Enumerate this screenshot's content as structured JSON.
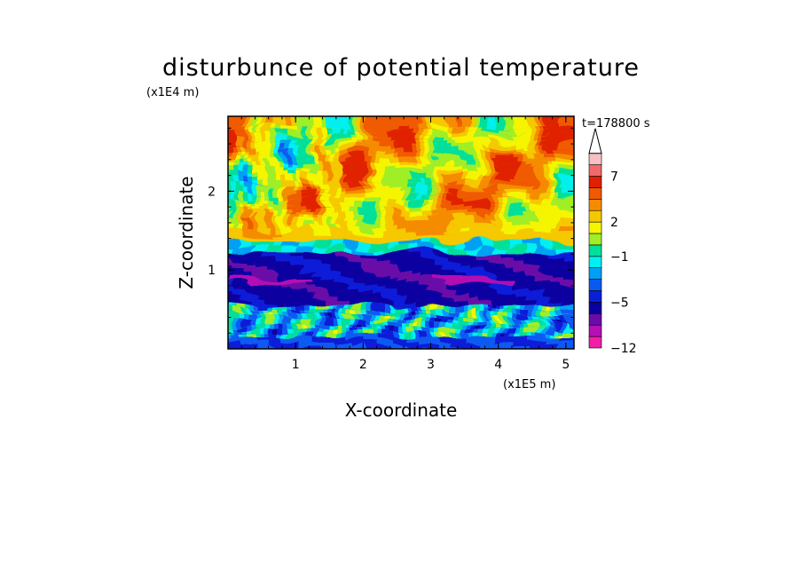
{
  "chart_data": {
    "type": "heatmap",
    "title": "disturbunce of potential temperature",
    "xlabel": "X-coordinate",
    "ylabel": "Z-coordinate",
    "x_unit": "(x1E5 m)",
    "y_unit": "(x1E4 m)",
    "time_label": "t=178800 s",
    "xlim": [
      0,
      5.12
    ],
    "ylim": [
      0,
      2.95
    ],
    "x_ticks": [
      1,
      2,
      3,
      4,
      5
    ],
    "y_ticks": [
      1,
      2
    ],
    "colorbar": {
      "tick_labels": [
        {
          "value": -12,
          "label": "−12"
        },
        {
          "value": -5,
          "label": "−5"
        },
        {
          "value": -1,
          "label": "−1"
        },
        {
          "value": 2,
          "label": "2"
        },
        {
          "value": 7,
          "label": "7"
        }
      ],
      "levels": [
        {
          "from": -12,
          "to": -10,
          "color": "#f21ea8"
        },
        {
          "from": -10,
          "to": -8,
          "color": "#b410b4"
        },
        {
          "from": -8,
          "to": -6,
          "color": "#6a0aa8"
        },
        {
          "from": -6,
          "to": -5,
          "color": "#0a00a0"
        },
        {
          "from": -5,
          "to": -4,
          "color": "#0a1ed8"
        },
        {
          "from": -4,
          "to": -3,
          "color": "#0a5af2"
        },
        {
          "from": -3,
          "to": -2,
          "color": "#00a0f5"
        },
        {
          "from": -2,
          "to": -1,
          "color": "#00f0f0"
        },
        {
          "from": -1,
          "to": 0,
          "color": "#00e09a"
        },
        {
          "from": 0,
          "to": 1,
          "color": "#a0ee28"
        },
        {
          "from": 1,
          "to": 2,
          "color": "#f5f500"
        },
        {
          "from": 2,
          "to": 3,
          "color": "#f5c800"
        },
        {
          "from": 3,
          "to": 4,
          "color": "#f58c00"
        },
        {
          "from": 4,
          "to": 5,
          "color": "#f05a00"
        },
        {
          "from": 5,
          "to": 7,
          "color": "#e02000"
        },
        {
          "from": 7,
          "to": 9,
          "color": "#f06a6a"
        },
        {
          "from": 9,
          "to": 11,
          "color": "#f8c0c0"
        }
      ],
      "extend_top": true
    },
    "field_summary": [
      {
        "z_range": [
          0.0,
          0.2
        ],
        "value": -4
      },
      {
        "z_range": [
          0.2,
          0.6
        ],
        "value": -2
      },
      {
        "z_range": [
          0.6,
          1.3
        ],
        "value": -5.5
      },
      {
        "z_range": [
          1.3,
          1.4
        ],
        "value": -1.5
      },
      {
        "z_range": [
          1.4,
          2.95
        ],
        "value": 2.5
      }
    ]
  }
}
